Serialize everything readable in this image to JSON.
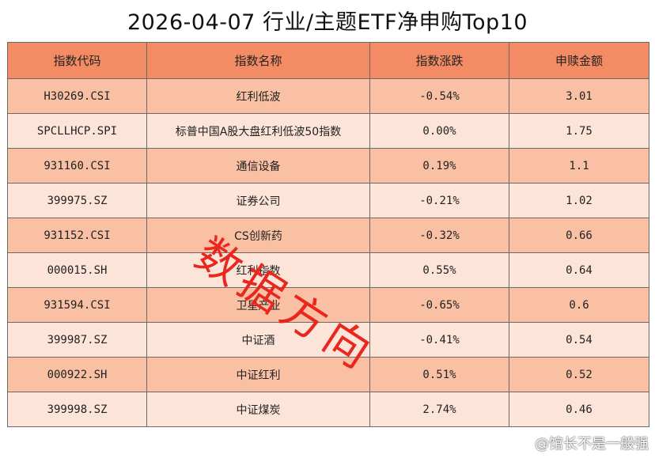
{
  "title": "2026-04-07 行业/主题ETF净申购Top10",
  "colors": {
    "header": "#f38c64",
    "row_dark": "#f9c0a4",
    "row_light": "#fde4d8",
    "watermark": "#e8281e"
  },
  "table": {
    "headers": [
      "指数代码",
      "指数名称",
      "指数涨跌",
      "申赎金额"
    ],
    "rows": [
      [
        "H30269.CSI",
        "红利低波",
        "-0.54%",
        "3.01"
      ],
      [
        "SPCLLHCP.SPI",
        "标普中国A股大盘红利低波50指数",
        "0.00%",
        "1.75"
      ],
      [
        "931160.CSI",
        "通信设备",
        "0.19%",
        "1.1"
      ],
      [
        "399975.SZ",
        "证券公司",
        "-0.21%",
        "1.02"
      ],
      [
        "931152.CSI",
        "CS创新药",
        "-0.32%",
        "0.66"
      ],
      [
        "000015.SH",
        "红利指数",
        "0.55%",
        "0.64"
      ],
      [
        "931594.CSI",
        "卫星产业",
        "-0.65%",
        "0.6"
      ],
      [
        "399987.SZ",
        "中证酒",
        "-0.41%",
        "0.54"
      ],
      [
        "000922.SH",
        "中证红利",
        "0.51%",
        "0.52"
      ],
      [
        "399998.SZ",
        "中证煤炭",
        "2.74%",
        "0.46"
      ]
    ]
  },
  "watermark": "数据方向",
  "credit": "@馆长不是一般强"
}
